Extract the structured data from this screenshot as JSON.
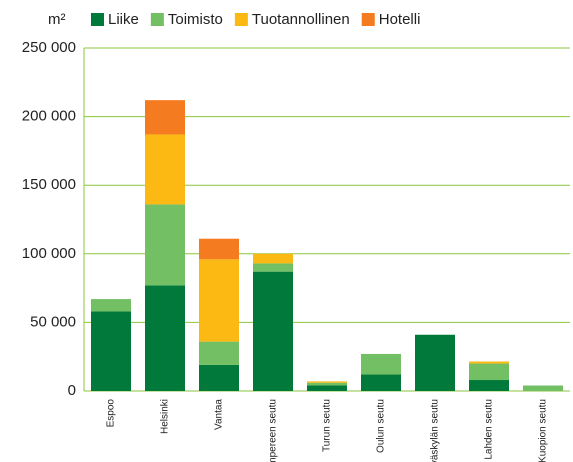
{
  "chart_data": {
    "type": "stacked_bar",
    "y_unit": "m²",
    "categories": [
      "Espoo",
      "Helsinki",
      "Vantaa",
      "Tampereen seutu",
      "Turun seutu",
      "Oulun seutu",
      "Jyväskylän seutu",
      "Lahden seutu",
      "Kuopion seutu"
    ],
    "series": [
      {
        "name": "Liike",
        "color": "#00793a",
        "values": [
          58000,
          77000,
          19000,
          87000,
          4000,
          12000,
          41000,
          8000,
          0
        ]
      },
      {
        "name": "Toimisto",
        "color": "#73bf64",
        "values": [
          9000,
          59000,
          17000,
          6000,
          2000,
          15000,
          0,
          12000,
          4000
        ]
      },
      {
        "name": "Tuotannollinen",
        "color": "#fcb813",
        "values": [
          0,
          51000,
          60000,
          7000,
          1000,
          0,
          0,
          1500,
          0
        ]
      },
      {
        "name": "Hotelli",
        "color": "#f47b20",
        "values": [
          0,
          25000,
          15000,
          0,
          0,
          0,
          0,
          0,
          0
        ]
      }
    ],
    "ylim": [
      0,
      250000
    ],
    "yticks": [
      0,
      {
        "value": 50000,
        "label": "50 000"
      },
      {
        "value": 100000,
        "label": "100 000"
      },
      {
        "value": 150000,
        "label": "150 000"
      },
      {
        "value": 200000,
        "label": "200 000"
      },
      {
        "value": 250000,
        "label": "250 000"
      }
    ],
    "grid": true,
    "legend": "top"
  }
}
